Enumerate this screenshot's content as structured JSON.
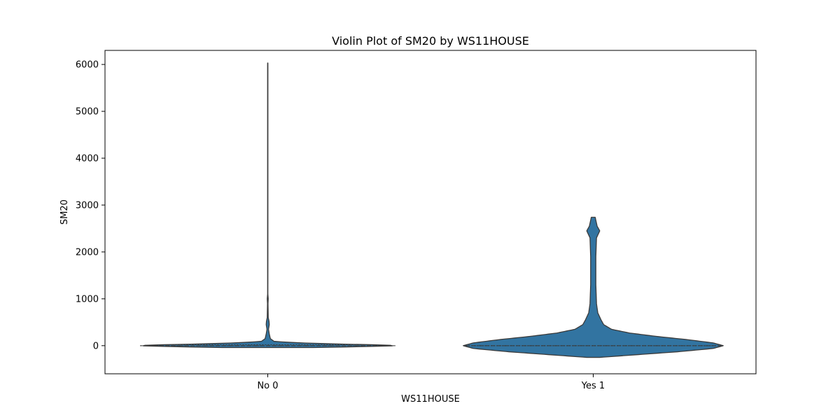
{
  "chart_data": {
    "type": "violin",
    "title": "Violin Plot of SM20 by WS11HOUSE",
    "xlabel": "WS11HOUSE",
    "ylabel": "SM20",
    "categories": [
      "No 0",
      "Yes 1"
    ],
    "ylim": [
      -600,
      6300
    ],
    "yticks": [
      0,
      1000,
      2000,
      3000,
      4000,
      5000,
      6000
    ],
    "grid": false,
    "legend": "none",
    "colors": {
      "fill": "#3274a1",
      "edge": "#3a3a3a",
      "inner": "#3a3a3a"
    },
    "violins": [
      {
        "category": "No 0",
        "min": -40,
        "max": 6030,
        "quartiles": [
          0,
          0,
          20
        ],
        "profile": [
          [
            -40,
            0.35
          ],
          [
            -20,
            0.75
          ],
          [
            0,
            1.0
          ],
          [
            15,
            0.9
          ],
          [
            35,
            0.55
          ],
          [
            60,
            0.25
          ],
          [
            90,
            0.05
          ],
          [
            150,
            0.02
          ],
          [
            250,
            0.012
          ],
          [
            350,
            0.006
          ],
          [
            450,
            0.012
          ],
          [
            520,
            0.01
          ],
          [
            600,
            0.004
          ],
          [
            900,
            0.002
          ],
          [
            1000,
            0.004
          ],
          [
            1100,
            0.001
          ],
          [
            2000,
            0.0012
          ],
          [
            4000,
            0.0012
          ],
          [
            6030,
            0.0012
          ]
        ]
      },
      {
        "category": "Yes 1",
        "min": -250,
        "max": 2740,
        "quartiles": [
          0,
          0,
          0
        ],
        "profile": [
          [
            -250,
            0.05
          ],
          [
            -200,
            0.3
          ],
          [
            -130,
            0.65
          ],
          [
            -60,
            0.92
          ],
          [
            0,
            1.0
          ],
          [
            60,
            0.92
          ],
          [
            130,
            0.72
          ],
          [
            200,
            0.48
          ],
          [
            270,
            0.28
          ],
          [
            350,
            0.14
          ],
          [
            450,
            0.08
          ],
          [
            550,
            0.06
          ],
          [
            700,
            0.035
          ],
          [
            900,
            0.025
          ],
          [
            1300,
            0.02
          ],
          [
            1900,
            0.02
          ],
          [
            2300,
            0.025
          ],
          [
            2450,
            0.05
          ],
          [
            2550,
            0.03
          ],
          [
            2740,
            0.015
          ]
        ]
      }
    ]
  }
}
